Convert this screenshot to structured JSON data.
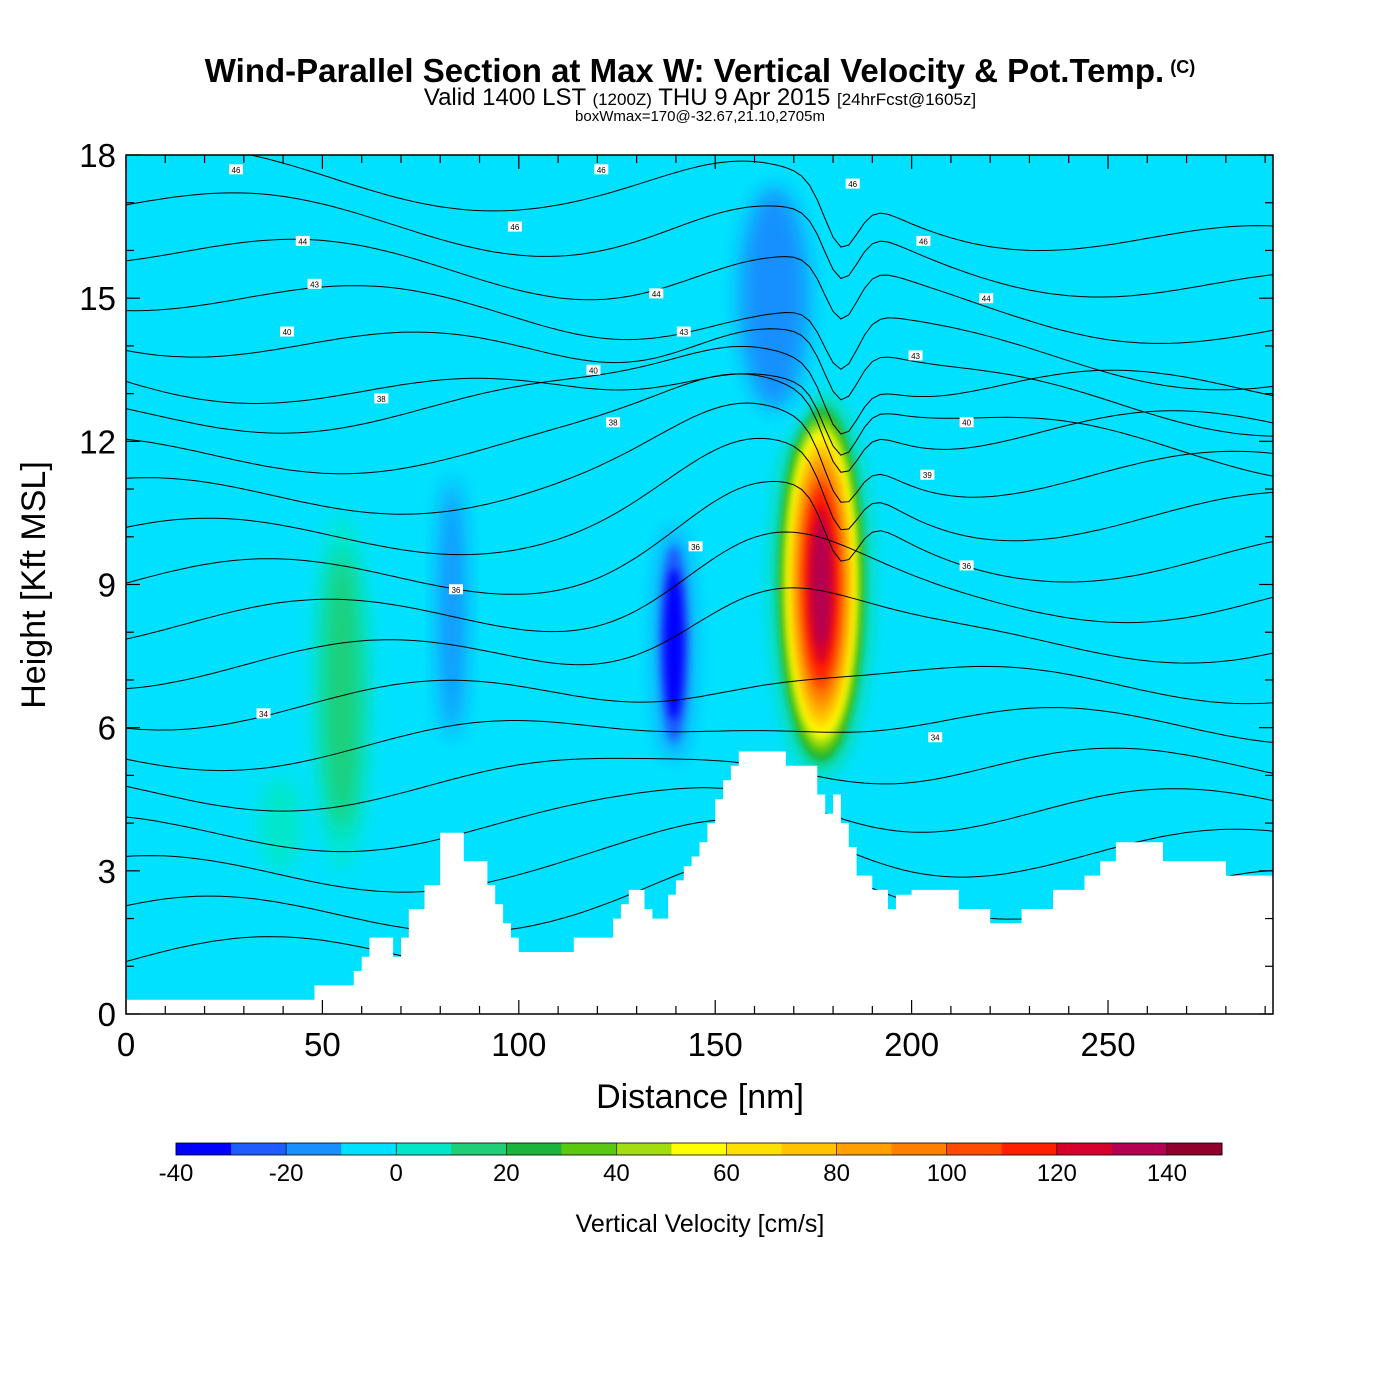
{
  "title": {
    "main": "Wind-Parallel Section at Max W: Vertical Velocity & Pot.Temp.",
    "copyright": "(C)",
    "valid_prefix": "Valid 1400 LST",
    "valid_utc": "(1200Z)",
    "valid_date": "THU 9 Apr 2015",
    "forecast": "[24hrFcst@1605z]",
    "box_wmax": "boxWmax=170@-32.67,21.10,2705m"
  },
  "chart_data": {
    "type": "heatmap",
    "xlabel": "Distance [nm]",
    "ylabel": "Height [Kft MSL]",
    "xlim": [
      0,
      292
    ],
    "ylim": [
      0,
      18
    ],
    "xticks": [
      0,
      50,
      100,
      150,
      200,
      250
    ],
    "yticks": [
      0,
      3,
      6,
      9,
      12,
      15,
      18
    ],
    "colorbar": {
      "label": "Vertical Velocity [cm/s]",
      "range": [
        -40,
        150
      ],
      "step": 10,
      "tick_labels": [
        "-40",
        "-20",
        "0",
        "20",
        "40",
        "60",
        "80",
        "100",
        "120",
        "140"
      ],
      "colors": [
        "#0000ff",
        "#1f5bff",
        "#1990ff",
        "#00e1ff",
        "#00e7c8",
        "#1fcf78",
        "#18b43c",
        "#5ac80f",
        "#a3dd0f",
        "#ffff00",
        "#ffe100",
        "#ffc300",
        "#ffa000",
        "#ff7f00",
        "#ff4b00",
        "#ff1e00",
        "#d7002d",
        "#b40050",
        "#90002d"
      ]
    },
    "background_value": 0,
    "updraft_cores": [
      {
        "x": [
          160,
          184
        ],
        "y": [
          5,
          13
        ],
        "peak_x": 177,
        "peak_y": 9,
        "peak": 140
      },
      {
        "x": [
          48,
          62
        ],
        "y": [
          3,
          10.5
        ],
        "peak": 25
      },
      {
        "x": [
          34,
          45
        ],
        "y": [
          3,
          5
        ],
        "peak": 15
      }
    ],
    "downdraft_cores": [
      {
        "x": [
          78,
          88
        ],
        "y": [
          5,
          12
        ],
        "peak": -25
      },
      {
        "x": [
          134,
          145
        ],
        "y": [
          5,
          10.5
        ],
        "peak": -40
      },
      {
        "x": [
          152,
          178
        ],
        "y": [
          12,
          18
        ],
        "peak": -20
      },
      {
        "x": [
          90,
          98
        ],
        "y": [
          3,
          5
        ],
        "peak": -15
      }
    ],
    "terrain": {
      "x": [
        0,
        6,
        12,
        18,
        24,
        30,
        36,
        42,
        48,
        52,
        56,
        58,
        60,
        62,
        64,
        66,
        68,
        70,
        72,
        74,
        76,
        80,
        84,
        86,
        88,
        90,
        92,
        94,
        96,
        98,
        100,
        106,
        112,
        114,
        118,
        122,
        124,
        126,
        128,
        130,
        132,
        134,
        136,
        138,
        140,
        142,
        144,
        146,
        148,
        150,
        152,
        154,
        156,
        158,
        162,
        168,
        172,
        174,
        176,
        178,
        180,
        182,
        184,
        186,
        190,
        194,
        196,
        200,
        206,
        212,
        216,
        220,
        224,
        228,
        232,
        236,
        240,
        244,
        248,
        252,
        256,
        260,
        264,
        268,
        272,
        276,
        280,
        284,
        288,
        292
      ],
      "y": [
        0.3,
        0.3,
        0.3,
        0.3,
        0.3,
        0.3,
        0.3,
        0.3,
        0.6,
        0.6,
        0.6,
        0.9,
        1.2,
        1.6,
        1.6,
        1.6,
        1.2,
        1.6,
        2.2,
        2.2,
        2.7,
        3.8,
        3.8,
        3.2,
        3.2,
        3.2,
        2.7,
        2.3,
        1.9,
        1.6,
        1.3,
        1.3,
        1.3,
        1.6,
        1.6,
        1.6,
        2.0,
        2.3,
        2.6,
        2.6,
        2.2,
        2.0,
        2.0,
        2.5,
        2.8,
        3.1,
        3.3,
        3.6,
        4.0,
        4.5,
        4.9,
        5.2,
        5.5,
        5.5,
        5.5,
        5.2,
        5.2,
        5.2,
        4.6,
        4.2,
        4.6,
        4.0,
        3.5,
        2.9,
        2.6,
        2.2,
        2.5,
        2.6,
        2.6,
        2.2,
        2.2,
        1.9,
        1.9,
        2.2,
        2.2,
        2.6,
        2.6,
        2.9,
        3.2,
        3.6,
        3.6,
        3.6,
        3.2,
        3.2,
        3.2,
        3.2,
        2.9,
        2.9,
        2.9,
        2.9
      ]
    },
    "theta_labels": [
      {
        "text": "46",
        "x": 28,
        "y": 17.7
      },
      {
        "text": "46",
        "x": 121,
        "y": 17.7
      },
      {
        "text": "46",
        "x": 185,
        "y": 17.4
      },
      {
        "text": "46",
        "x": 99,
        "y": 16.5
      },
      {
        "text": "44",
        "x": 45,
        "y": 16.2
      },
      {
        "text": "46",
        "x": 203,
        "y": 16.2
      },
      {
        "text": "43",
        "x": 48,
        "y": 15.3
      },
      {
        "text": "44",
        "x": 135,
        "y": 15.1
      },
      {
        "text": "44",
        "x": 219,
        "y": 15.0
      },
      {
        "text": "40",
        "x": 41,
        "y": 14.3
      },
      {
        "text": "43",
        "x": 142,
        "y": 14.3
      },
      {
        "text": "43",
        "x": 201,
        "y": 13.8
      },
      {
        "text": "40",
        "x": 119,
        "y": 13.5
      },
      {
        "text": "38",
        "x": 65,
        "y": 12.9
      },
      {
        "text": "38",
        "x": 124,
        "y": 12.4
      },
      {
        "text": "40",
        "x": 214,
        "y": 12.4
      },
      {
        "text": "39",
        "x": 204,
        "y": 11.3
      },
      {
        "text": "36",
        "x": 145,
        "y": 9.8
      },
      {
        "text": "36",
        "x": 84,
        "y": 8.9
      },
      {
        "text": "36",
        "x": 214,
        "y": 9.4
      },
      {
        "text": "34",
        "x": 35,
        "y": 6.3
      },
      {
        "text": "34",
        "x": 206,
        "y": 5.8
      }
    ]
  }
}
